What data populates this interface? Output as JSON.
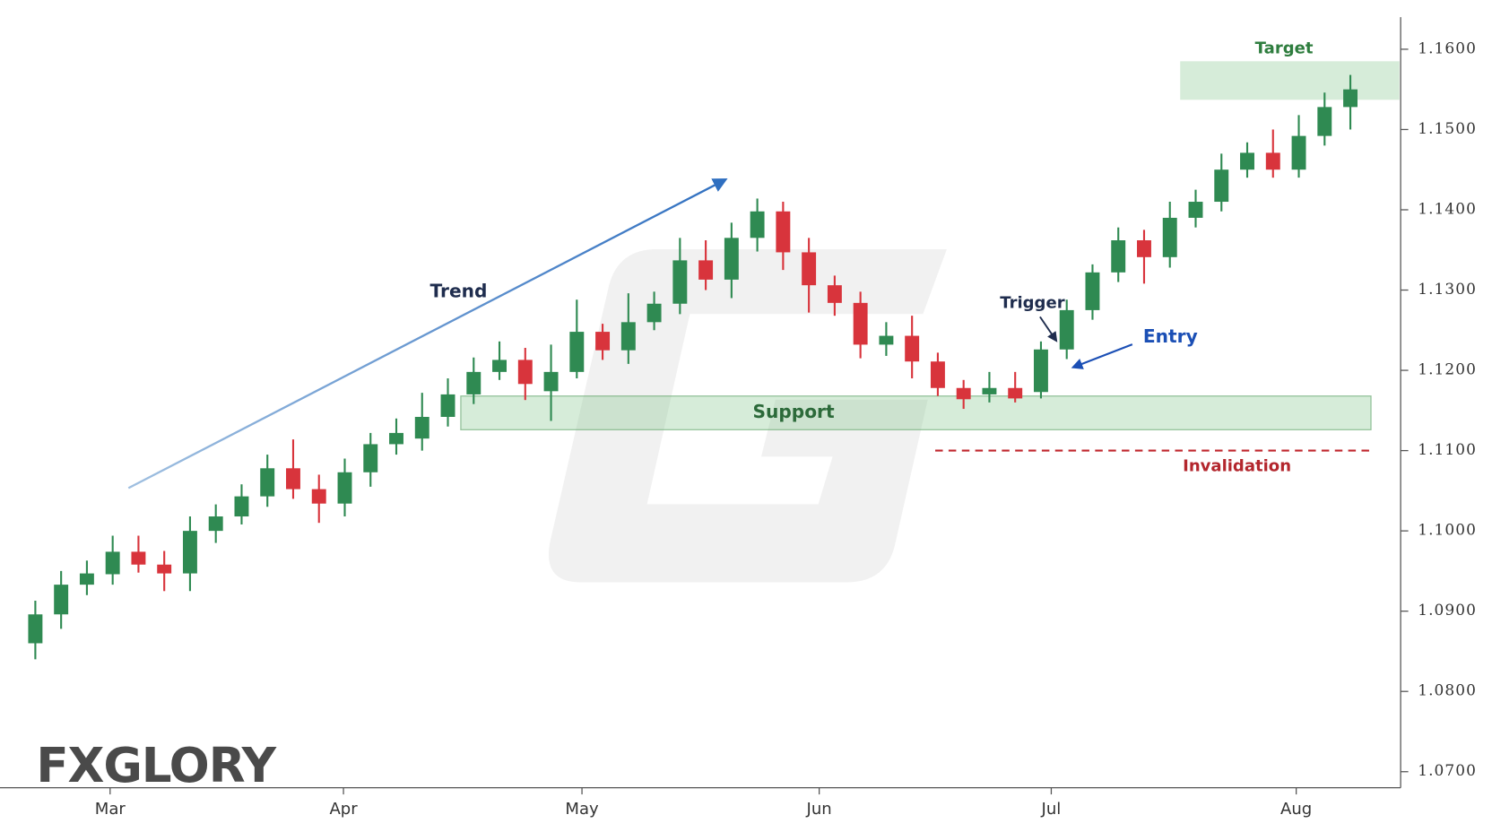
{
  "chart_data": {
    "type": "candlestick",
    "x": [
      0,
      1,
      2,
      3,
      4,
      5,
      6,
      7,
      8,
      9,
      10,
      11,
      12,
      13,
      14,
      15,
      16,
      17,
      18,
      19,
      20,
      21,
      22,
      23,
      24,
      25,
      26,
      27,
      28,
      29,
      30,
      31,
      32,
      33,
      34,
      35,
      36,
      37,
      38,
      39,
      40,
      41,
      42,
      43,
      44,
      45,
      46,
      47,
      48,
      49,
      50,
      51
    ],
    "open": [
      1.086,
      1.0896,
      1.0933,
      1.0946,
      1.0974,
      1.0958,
      1.0947,
      1.1,
      1.1018,
      1.1043,
      1.1078,
      1.1052,
      1.1034,
      1.1073,
      1.1108,
      1.1115,
      1.1142,
      1.117,
      1.1198,
      1.1213,
      1.1174,
      1.1198,
      1.1248,
      1.1225,
      1.126,
      1.1283,
      1.1337,
      1.1313,
      1.1365,
      1.1398,
      1.1347,
      1.1306,
      1.1284,
      1.1232,
      1.1243,
      1.1211,
      1.1178,
      1.117,
      1.1178,
      1.1173,
      1.1226,
      1.1275,
      1.1322,
      1.1362,
      1.1341,
      1.139,
      1.141,
      1.145,
      1.1471,
      1.145,
      1.1492,
      1.1528
    ],
    "high": [
      1.0913,
      1.095,
      1.0963,
      1.0994,
      1.0994,
      1.0975,
      1.1018,
      1.1033,
      1.1058,
      1.1095,
      1.1114,
      1.107,
      1.109,
      1.1122,
      1.114,
      1.1172,
      1.119,
      1.1216,
      1.1236,
      1.1228,
      1.1232,
      1.1288,
      1.1258,
      1.1296,
      1.1298,
      1.1365,
      1.1362,
      1.1384,
      1.1414,
      1.141,
      1.1365,
      1.1318,
      1.1298,
      1.126,
      1.1268,
      1.1222,
      1.1188,
      1.1198,
      1.1198,
      1.1236,
      1.1288,
      1.1332,
      1.1378,
      1.1375,
      1.141,
      1.1425,
      1.147,
      1.1484,
      1.15,
      1.1518,
      1.1546,
      1.1568
    ],
    "low": [
      1.084,
      1.0878,
      1.092,
      1.0933,
      1.0948,
      1.0925,
      1.0925,
      1.0985,
      1.1008,
      1.103,
      1.104,
      1.101,
      1.1018,
      1.1055,
      1.1095,
      1.11,
      1.113,
      1.1158,
      1.1188,
      1.1163,
      1.1137,
      1.119,
      1.1213,
      1.1208,
      1.125,
      1.127,
      1.13,
      1.129,
      1.1348,
      1.1325,
      1.1272,
      1.1268,
      1.1215,
      1.1218,
      1.119,
      1.1168,
      1.1152,
      1.116,
      1.116,
      1.1165,
      1.1214,
      1.1263,
      1.131,
      1.1308,
      1.1328,
      1.1378,
      1.1398,
      1.144,
      1.144,
      1.144,
      1.148,
      1.15
    ],
    "close": [
      1.0896,
      1.0933,
      1.0947,
      1.0974,
      1.0958,
      1.0947,
      1.1,
      1.1018,
      1.1043,
      1.1078,
      1.1052,
      1.1034,
      1.1073,
      1.1108,
      1.1122,
      1.1142,
      1.117,
      1.1198,
      1.1213,
      1.1183,
      1.1198,
      1.1248,
      1.1225,
      1.126,
      1.1283,
      1.1337,
      1.1313,
      1.1365,
      1.1398,
      1.1347,
      1.1306,
      1.1284,
      1.1232,
      1.1243,
      1.1211,
      1.1178,
      1.1164,
      1.1178,
      1.1165,
      1.1226,
      1.1275,
      1.1322,
      1.1362,
      1.1341,
      1.139,
      1.141,
      1.145,
      1.1471,
      1.145,
      1.1492,
      1.1528,
      1.155
    ],
    "up_color": "#2f8a52",
    "down_color": "#d8343c",
    "xlim": [
      -1.37,
      52.95
    ],
    "xticks": [
      {
        "value": 2.9,
        "label": "Mar"
      },
      {
        "value": 11.95,
        "label": "Apr"
      },
      {
        "value": 21.2,
        "label": "May"
      },
      {
        "value": 30.4,
        "label": "Jun"
      },
      {
        "value": 39.4,
        "label": "Jul"
      },
      {
        "value": 48.9,
        "label": "Aug"
      }
    ],
    "ylim": [
      1.068,
      1.164
    ],
    "yticks": [
      {
        "value": 1.07,
        "label": "1.0700"
      },
      {
        "value": 1.08,
        "label": "1.0800"
      },
      {
        "value": 1.09,
        "label": "1.0900"
      },
      {
        "value": 1.1,
        "label": "1.1000"
      },
      {
        "value": 1.11,
        "label": "1.1100"
      },
      {
        "value": 1.12,
        "label": "1.1200"
      },
      {
        "value": 1.13,
        "label": "1.1300"
      },
      {
        "value": 1.14,
        "label": "1.1400"
      },
      {
        "value": 1.15,
        "label": "1.1500"
      },
      {
        "value": 1.16,
        "label": "1.1600"
      }
    ],
    "support": {
      "label": "Support",
      "range": [
        1.1126,
        1.1168
      ],
      "x_range": [
        16.5,
        51.8
      ]
    },
    "target": {
      "label": "Target",
      "range": [
        1.1537,
        1.1585
      ],
      "x_range": [
        44.4,
        52.9
      ]
    },
    "invalidation": {
      "label": "Invalidation",
      "value": 1.11,
      "x_range": [
        34.9,
        51.8
      ]
    },
    "annotations": [
      "Trend",
      "Trigger",
      "Entry"
    ],
    "watermark": "FXGLORY"
  }
}
